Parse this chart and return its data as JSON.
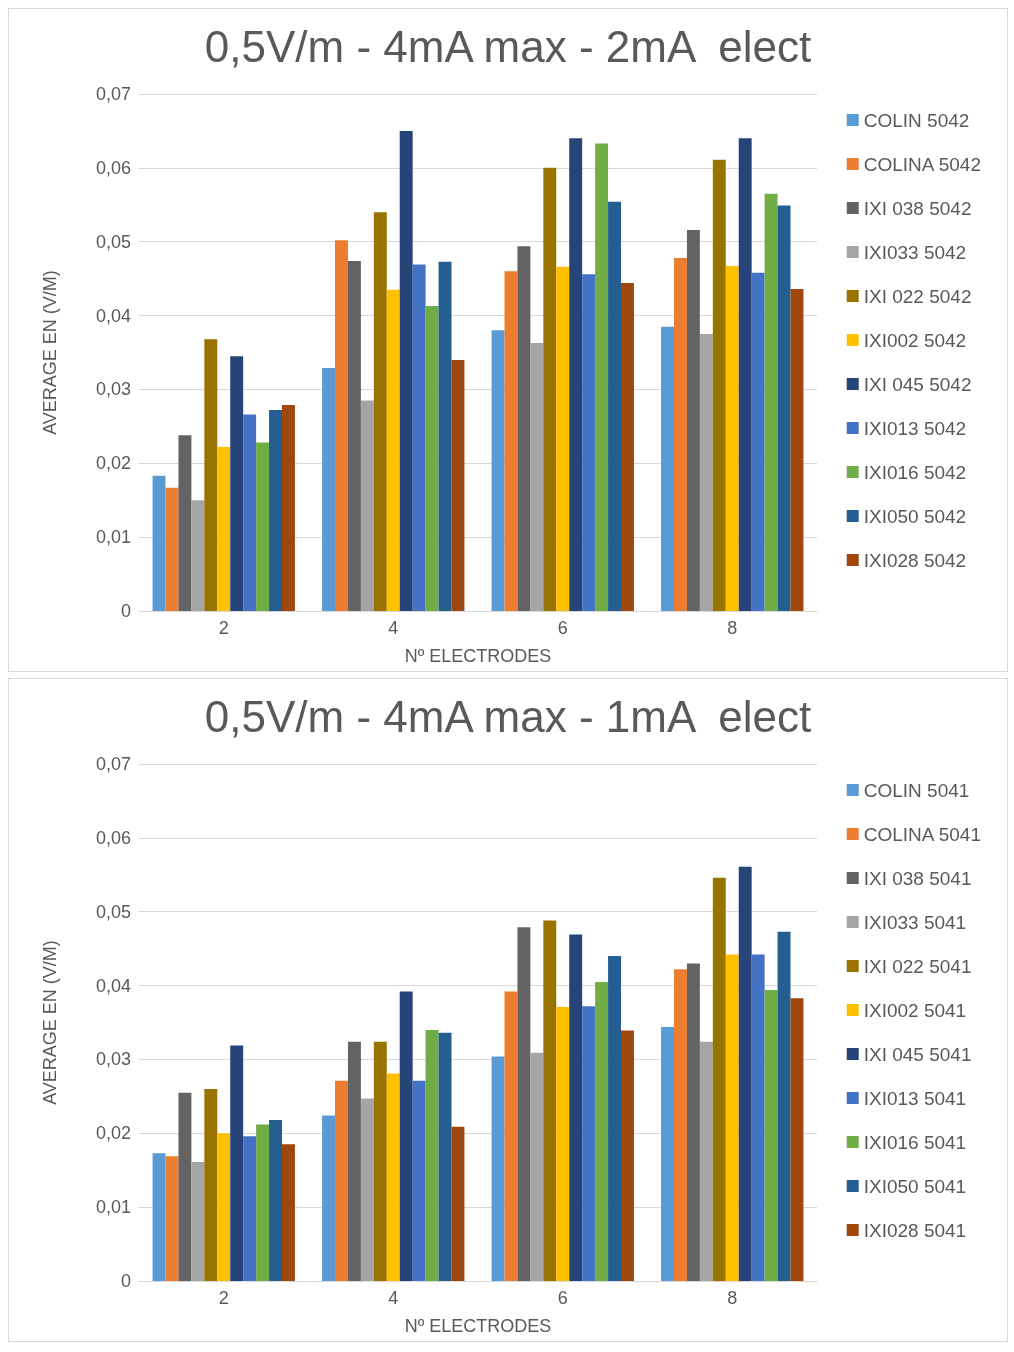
{
  "chart_data": [
    {
      "type": "bar",
      "title": "0,5V/m - 4mA max - 2mA  elect",
      "xlabel": "Nº ELECTRODES",
      "ylabel": "AVERAGE EN (V/M)",
      "categories": [
        "2",
        "4",
        "6",
        "8"
      ],
      "ylim": [
        0,
        0.07
      ],
      "yticks": [
        {
          "value": 0,
          "label": "0"
        },
        {
          "value": 0.01,
          "label": "0,01"
        },
        {
          "value": 0.02,
          "label": "0,02"
        },
        {
          "value": 0.03,
          "label": "0,03"
        },
        {
          "value": 0.04,
          "label": "0,04"
        },
        {
          "value": 0.05,
          "label": "0,05"
        },
        {
          "value": 0.06,
          "label": "0,06"
        },
        {
          "value": 0.07,
          "label": "0,07"
        }
      ],
      "grid": "y",
      "legend": "right",
      "series": [
        {
          "name": "COLIN 5042",
          "color": "#5b9bd5",
          "values": [
            0.0183,
            0.0329,
            0.038,
            0.0385
          ]
        },
        {
          "name": "COLINA 5042",
          "color": "#ed7d31",
          "values": [
            0.0167,
            0.0502,
            0.046,
            0.0478
          ]
        },
        {
          "name": "IXI 038 5042",
          "color": "#636363",
          "values": [
            0.0238,
            0.0474,
            0.0494,
            0.0516
          ]
        },
        {
          "name": "IXI033 5042",
          "color": "#a5a5a5",
          "values": [
            0.015,
            0.0285,
            0.0363,
            0.0375
          ]
        },
        {
          "name": "IXI 022 5042",
          "color": "#997300",
          "values": [
            0.0368,
            0.054,
            0.06,
            0.0611
          ]
        },
        {
          "name": "IXI002 5042",
          "color": "#ffc000",
          "values": [
            0.0222,
            0.0435,
            0.0466,
            0.0467
          ]
        },
        {
          "name": "IXI 045 5042",
          "color": "#264478",
          "values": [
            0.0345,
            0.065,
            0.064,
            0.064
          ]
        },
        {
          "name": "IXI013 5042",
          "color": "#4472c4",
          "values": [
            0.0266,
            0.0469,
            0.0456,
            0.0458
          ]
        },
        {
          "name": "IXI016 5042",
          "color": "#70ad47",
          "values": [
            0.0228,
            0.0413,
            0.0633,
            0.0565
          ]
        },
        {
          "name": "IXI050 5042",
          "color": "#255e91",
          "values": [
            0.0272,
            0.0473,
            0.0554,
            0.0549
          ]
        },
        {
          "name": "IXI028 5042",
          "color": "#9e480e",
          "values": [
            0.0279,
            0.034,
            0.0444,
            0.0436
          ]
        }
      ]
    },
    {
      "type": "bar",
      "title": "0,5V/m - 4mA max - 1mA  elect",
      "xlabel": "Nº ELECTRODES",
      "ylabel": "AVERAGE EN (V/M)",
      "categories": [
        "2",
        "4",
        "6",
        "8"
      ],
      "ylim": [
        0,
        0.07
      ],
      "yticks": [
        {
          "value": 0,
          "label": "0"
        },
        {
          "value": 0.01,
          "label": "0,01"
        },
        {
          "value": 0.02,
          "label": "0,02"
        },
        {
          "value": 0.03,
          "label": "0,03"
        },
        {
          "value": 0.04,
          "label": "0,04"
        },
        {
          "value": 0.05,
          "label": "0,05"
        },
        {
          "value": 0.06,
          "label": "0,06"
        },
        {
          "value": 0.07,
          "label": "0,07"
        }
      ],
      "grid": "y",
      "legend": "right",
      "series": [
        {
          "name": "COLIN 5041",
          "color": "#5b9bd5",
          "values": [
            0.0173,
            0.0224,
            0.0304,
            0.0344
          ]
        },
        {
          "name": "COLINA 5041",
          "color": "#ed7d31",
          "values": [
            0.0169,
            0.0271,
            0.0392,
            0.0422
          ]
        },
        {
          "name": "IXI 038 5041",
          "color": "#636363",
          "values": [
            0.0255,
            0.0324,
            0.0479,
            0.043
          ]
        },
        {
          "name": "IXI033 5041",
          "color": "#a5a5a5",
          "values": [
            0.0161,
            0.0247,
            0.0309,
            0.0324
          ]
        },
        {
          "name": "IXI 022 5041",
          "color": "#997300",
          "values": [
            0.026,
            0.0324,
            0.0488,
            0.0546
          ]
        },
        {
          "name": "IXI002 5041",
          "color": "#ffc000",
          "values": [
            0.02,
            0.0281,
            0.0371,
            0.0442
          ]
        },
        {
          "name": "IXI 045 5041",
          "color": "#264478",
          "values": [
            0.0319,
            0.0392,
            0.0469,
            0.0561
          ]
        },
        {
          "name": "IXI013 5041",
          "color": "#4472c4",
          "values": [
            0.0196,
            0.0271,
            0.0372,
            0.0442
          ]
        },
        {
          "name": "IXI016 5041",
          "color": "#70ad47",
          "values": [
            0.0212,
            0.034,
            0.0405,
            0.0394
          ]
        },
        {
          "name": "IXI050 5041",
          "color": "#255e91",
          "values": [
            0.0218,
            0.0336,
            0.044,
            0.0473
          ]
        },
        {
          "name": "IXI028 5041",
          "color": "#9e480e",
          "values": [
            0.0185,
            0.0209,
            0.0339,
            0.0383
          ]
        }
      ]
    }
  ]
}
